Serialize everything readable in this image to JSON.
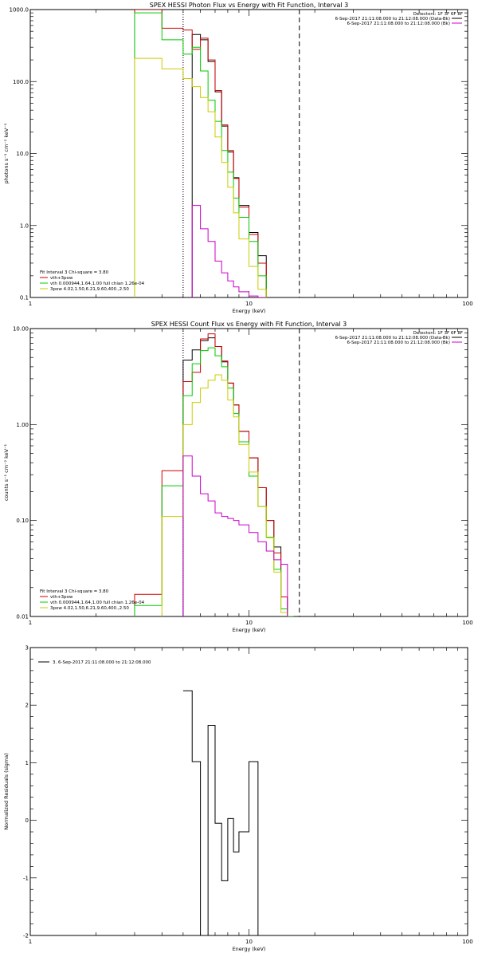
{
  "chart_data": [
    {
      "type": "line",
      "title": "SPEX HESSI Photon Flux vs Energy with Fit Function, Interval 3",
      "xlabel": "Energy (keV)",
      "ylabel": "photons s⁻¹ cm⁻² keV⁻¹",
      "xscale": "log",
      "yscale": "log",
      "xlim": [
        1,
        100
      ],
      "ylim": [
        0.1,
        1000
      ],
      "xticks": [
        {
          "v": 1,
          "label": "1"
        },
        {
          "v": 10,
          "label": "10"
        },
        {
          "v": 100,
          "label": "100"
        }
      ],
      "yticks": [
        {
          "v": 0.1,
          "label": "0.1"
        },
        {
          "v": 1,
          "label": "1.0"
        },
        {
          "v": 10,
          "label": "10.0"
        },
        {
          "v": 100,
          "label": "100.0"
        },
        {
          "v": 1000,
          "label": "1000.0"
        }
      ],
      "vlines": [
        {
          "x": 5.0,
          "color": "#cc00cc",
          "style": "dotted"
        },
        {
          "x": 5.0,
          "color": "#000000",
          "style": "dotted"
        },
        {
          "x": 17.0,
          "color": "#000000",
          "style": "dashed"
        }
      ],
      "edges": [
        3,
        4,
        5,
        5.5,
        6,
        6.5,
        7,
        7.5,
        8,
        8.5,
        9,
        10,
        11,
        12,
        13,
        14,
        15,
        16,
        17,
        18
      ],
      "series": [
        {
          "name": "",
          "color": "#000000",
          "values": [
            null,
            null,
            null,
            450,
            380,
            190,
            72,
            24,
            10.5,
            4.6,
            1.9,
            0.8,
            0.38,
            null,
            null,
            null,
            null,
            null,
            null
          ]
        },
        {
          "name": "vth+3pow",
          "color": "#cc0000",
          "values": [
            1000,
            550,
            520,
            280,
            400,
            200,
            75,
            25,
            11,
            4.5,
            1.8,
            0.75,
            0.3,
            null,
            null,
            null,
            null,
            null,
            null
          ]
        },
        {
          "name": "vth 0.000944,1.64,1.00  full chian 1.26e-04",
          "color": "#00cc00",
          "values": [
            900,
            380,
            240,
            300,
            140,
            55,
            28,
            11,
            5.5,
            2.4,
            1.3,
            0.6,
            0.2,
            null,
            null,
            null,
            null,
            null,
            null
          ]
        },
        {
          "name": "3pow 4.02,1.50,6.21,9.60,400.,2.50",
          "color": "#cccc00",
          "values": [
            210,
            150,
            110,
            85,
            60,
            38,
            17,
            7.5,
            3.4,
            1.5,
            0.65,
            0.27,
            0.13,
            null,
            null,
            null,
            null,
            null,
            null
          ]
        },
        {
          "name": "",
          "color": "#cc00cc",
          "values": [
            null,
            null,
            null,
            1.9,
            0.9,
            0.6,
            0.32,
            0.22,
            0.17,
            0.14,
            0.12,
            0.105,
            0.1,
            null,
            null,
            null,
            null,
            null,
            null
          ]
        }
      ],
      "legend_left": {
        "header": "Fit Interval 3   Chi-square = 3.80",
        "items": [
          1,
          2,
          3
        ]
      },
      "legend_right": {
        "header": "Detectors: 1F 3F 6F 8F",
        "items": [
          {
            "text": "6-Sep-2017 21:11:08.000 to 21:12:08.000 (Data-Bk)",
            "color": "#000000"
          },
          {
            "text": "6-Sep-2017 21:11:08.000 to 21:12:08.000 (Bk)",
            "color": "#cc00cc"
          }
        ]
      }
    },
    {
      "type": "line",
      "title": "SPEX HESSI Count Flux vs Energy with Fit Function, Interval 3",
      "xlabel": "Energy (keV)",
      "ylabel": "counts s⁻¹ cm⁻² keV⁻¹",
      "xscale": "log",
      "yscale": "log",
      "xlim": [
        1,
        100
      ],
      "ylim": [
        0.01,
        10
      ],
      "xticks": [
        {
          "v": 1,
          "label": "1"
        },
        {
          "v": 10,
          "label": "10"
        },
        {
          "v": 100,
          "label": "100"
        }
      ],
      "yticks": [
        {
          "v": 0.01,
          "label": "0.01"
        },
        {
          "v": 0.1,
          "label": "0.10"
        },
        {
          "v": 1,
          "label": "1.00"
        },
        {
          "v": 10,
          "label": "10.00"
        }
      ],
      "vlines": [
        {
          "x": 5.0,
          "color": "#cc00cc",
          "style": "dotted"
        },
        {
          "x": 5.0,
          "color": "#000000",
          "style": "dotted"
        },
        {
          "x": 17.0,
          "color": "#000000",
          "style": "dashed"
        }
      ],
      "edges": [
        3,
        4,
        5,
        5.5,
        6,
        6.5,
        7,
        7.5,
        8,
        8.5,
        9,
        10,
        11,
        12,
        13,
        14,
        15,
        16,
        17,
        18
      ],
      "series": [
        {
          "name": "",
          "color": "#000000",
          "values": [
            null,
            null,
            4.7,
            6.0,
            7.5,
            8.0,
            6.5,
            4.5,
            2.7,
            1.6,
            0.85,
            0.45,
            0.22,
            0.1,
            0.053,
            0.016,
            null,
            null,
            null
          ]
        },
        {
          "name": "vth+3pow",
          "color": "#cc0000",
          "values": [
            0.017,
            0.33,
            2.8,
            3.5,
            7.8,
            8.8,
            6.5,
            4.6,
            2.7,
            1.6,
            0.85,
            0.45,
            0.22,
            0.1,
            0.046,
            0.016,
            null,
            null,
            null
          ]
        },
        {
          "name": "vth 0.000944,1.64,1.00  full chian 1.26e-04",
          "color": "#00cc00",
          "values": [
            0.013,
            0.23,
            2.0,
            4.3,
            5.9,
            6.3,
            5.2,
            4.0,
            2.4,
            1.3,
            0.66,
            0.29,
            0.14,
            0.067,
            0.031,
            0.012,
            0.01,
            null,
            null
          ]
        },
        {
          "name": "3pow 4.02,1.50,6.21,9.60,400.,2.50",
          "color": "#cccc00",
          "values": [
            null,
            0.11,
            1.0,
            1.7,
            2.4,
            2.9,
            3.3,
            2.9,
            1.8,
            1.2,
            0.62,
            0.32,
            0.14,
            0.066,
            0.029,
            0.011,
            null,
            null,
            null
          ]
        },
        {
          "name": "",
          "color": "#cc00cc",
          "values": [
            null,
            null,
            0.47,
            0.29,
            0.19,
            0.16,
            0.12,
            0.11,
            0.105,
            0.1,
            0.09,
            0.075,
            0.06,
            0.048,
            0.039,
            0.035,
            null,
            null,
            null
          ]
        }
      ],
      "legend_left": {
        "header": "Fit Interval 3   Chi-square = 3.80",
        "items": [
          1,
          2,
          3
        ]
      },
      "legend_right": {
        "header": "Detectors: 1F 3F 6F 8F",
        "items": [
          {
            "text": "6-Sep-2017 21:11:08.000 to 21:12:08.000 (Data-Bk)",
            "color": "#000000"
          },
          {
            "text": "6-Sep-2017 21:11:08.000 to 21:12:08.000 (Bk)",
            "color": "#cc00cc"
          }
        ]
      }
    },
    {
      "type": "line",
      "title": "",
      "xlabel": "Energy (keV)",
      "ylabel": "Normalized Residuals (sigma)",
      "xscale": "log",
      "yscale": "linear",
      "xlim": [
        1,
        100
      ],
      "ylim": [
        -2,
        3
      ],
      "xticks": [
        {
          "v": 1,
          "label": "1"
        },
        {
          "v": 10,
          "label": "10"
        },
        {
          "v": 100,
          "label": "100"
        }
      ],
      "yticks": [
        {
          "v": -2,
          "label": "-2"
        },
        {
          "v": -1,
          "label": "-1"
        },
        {
          "v": 0,
          "label": "0"
        },
        {
          "v": 1,
          "label": "1"
        },
        {
          "v": 2,
          "label": "2"
        },
        {
          "v": 3,
          "label": "3"
        }
      ],
      "vlines": [],
      "edges": [
        5,
        5.5,
        6,
        6.5,
        7,
        7.5,
        8,
        8.5,
        9,
        10,
        11,
        12,
        13,
        14,
        15,
        16,
        17
      ],
      "series": [
        {
          "name": "",
          "color": "#000000",
          "values": [
            2.25,
            1.02,
            -2.0,
            1.65,
            -0.05,
            -1.05,
            0.03,
            -0.55,
            -0.2,
            1.02,
            null,
            null,
            null,
            null,
            null,
            null
          ]
        }
      ],
      "legend_left": {
        "header": "",
        "items": []
      },
      "legend_right": {
        "header": "",
        "items": []
      },
      "legend_top": {
        "text": "3.  6-Sep-2017 21:11:08.000 to 21:12:08.000",
        "color": "#000000"
      }
    }
  ]
}
